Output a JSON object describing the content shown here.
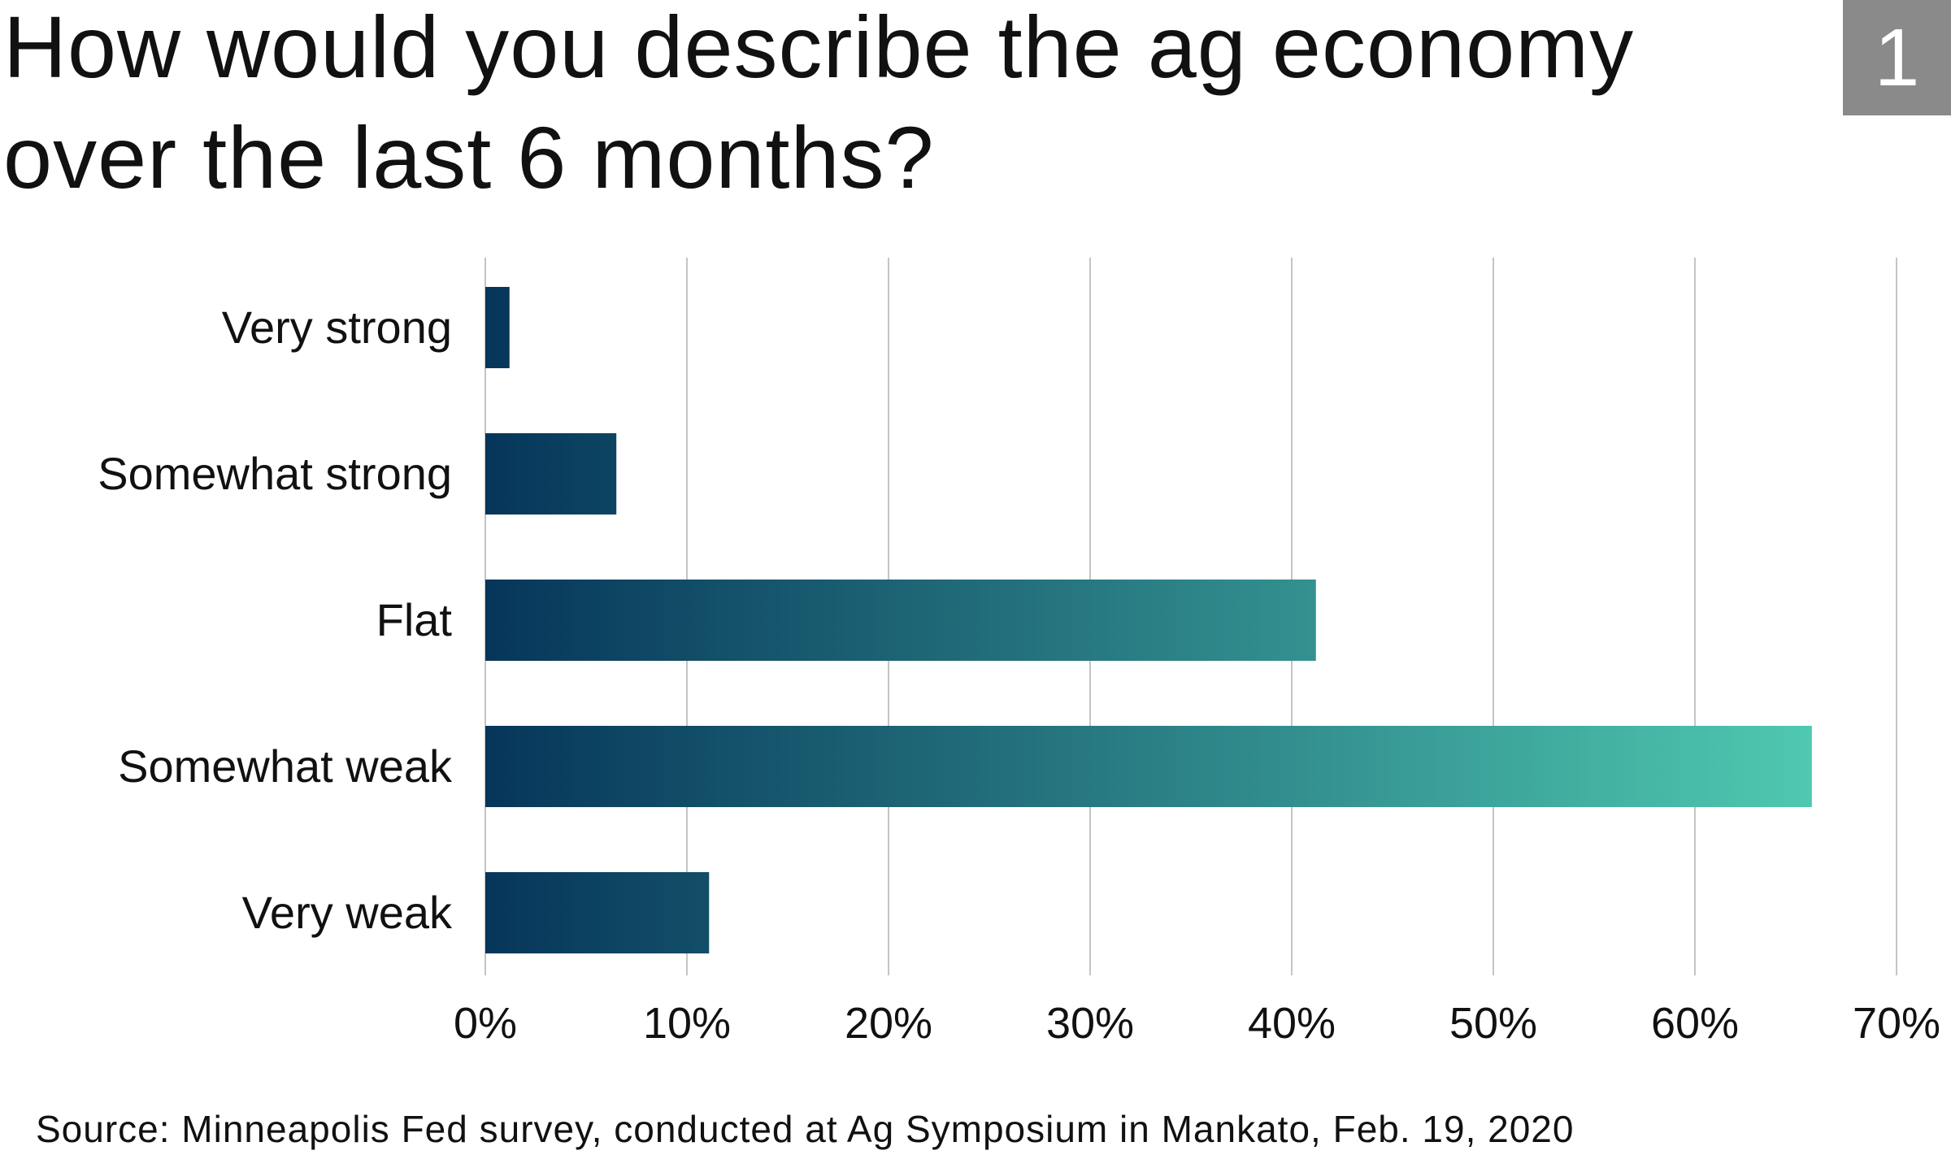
{
  "header": {
    "title_line1": "How would you describe the ag economy",
    "title_line2": "over the last 6 months?",
    "badge": "1"
  },
  "colors": {
    "bar_gradient_start": "#06365a",
    "bar_gradient_end": "#4fc8b0",
    "gridline": "#c4c4c4",
    "badge_bg": "#8a8a8a"
  },
  "chart_data": {
    "type": "bar",
    "orientation": "horizontal",
    "categories": [
      "Very strong",
      "Somewhat strong",
      "Flat",
      "Somewhat weak",
      "Very weak"
    ],
    "values": [
      1.2,
      6.5,
      41.2,
      65.8,
      11.1
    ],
    "xlim": [
      0,
      70
    ],
    "ticks": [
      0,
      10,
      20,
      30,
      40,
      50,
      60,
      70
    ],
    "tick_labels": [
      "0%",
      "10%",
      "20%",
      "30%",
      "40%",
      "50%",
      "60%",
      "70%"
    ],
    "xlabel": "",
    "ylabel": "",
    "grid": "vertical",
    "legend": "none"
  },
  "footer": {
    "source": "Source: Minneapolis Fed survey, conducted at Ag Symposium in Mankato, Feb. 19, 2020"
  }
}
